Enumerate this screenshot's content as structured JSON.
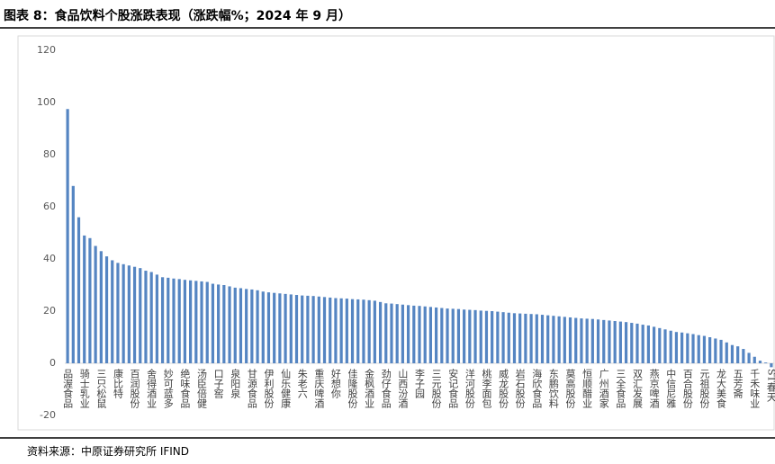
{
  "chart_data": {
    "type": "bar",
    "title": "图表 8：食品饮料个股涨跌表现（涨跌幅%；2024 年 9 月）",
    "source": "资料来源：中原证券研究所   IFIND",
    "categories": [
      "品渥食品",
      null,
      null,
      "骑士乳业",
      null,
      null,
      "三只松鼠",
      null,
      null,
      "康比特",
      null,
      null,
      "百润股份",
      null,
      null,
      "舍得酒业",
      null,
      null,
      "妙可蓝多",
      null,
      null,
      "绝味食品",
      null,
      null,
      "汤臣倍健",
      null,
      null,
      "口子窖",
      null,
      null,
      "泉阳泉",
      null,
      null,
      "甘源食品",
      null,
      null,
      "伊利股份",
      null,
      null,
      "仙乐健康",
      null,
      null,
      "朱老六",
      null,
      null,
      "重庆啤酒",
      null,
      null,
      "好想你",
      null,
      null,
      "佳隆股份",
      null,
      null,
      "金枫酒业",
      null,
      null,
      "劲仔食品",
      null,
      null,
      "山西汾酒",
      null,
      null,
      "李子园",
      null,
      null,
      "三元股份",
      null,
      null,
      "安记食品",
      null,
      null,
      "洋河股份",
      null,
      null,
      "桃李面包",
      null,
      null,
      "威龙股份",
      null,
      null,
      "岩石股份",
      null,
      null,
      "海欣食品",
      null,
      null,
      "东鹏饮料",
      null,
      null,
      "莫高股份",
      null,
      null,
      "恒顺醋业",
      null,
      null,
      "广州酒家",
      null,
      null,
      "三全食品",
      null,
      null,
      "双汇发展",
      null,
      null,
      "燕京啤酒",
      null,
      null,
      "中信尼雅",
      null,
      null,
      "百合股份",
      null,
      null,
      "元祖股份",
      null,
      null,
      "龙大美食",
      null,
      null,
      "五芳斋",
      null,
      null,
      "千禾味业",
      null,
      null,
      "ST春天"
    ],
    "values": [
      97.5,
      68,
      56,
      49,
      48,
      45,
      43,
      41,
      39.5,
      38.5,
      38,
      37.5,
      37,
      36.5,
      35.5,
      35,
      34,
      33,
      32.8,
      32.5,
      32.3,
      32,
      31.8,
      31.6,
      31.4,
      31.2,
      30.5,
      30.2,
      30,
      29.5,
      29,
      28.8,
      28.5,
      28.3,
      28,
      27.5,
      27.2,
      27,
      26.8,
      26.6,
      26.4,
      26.2,
      26,
      25.9,
      25.8,
      25.6,
      25.4,
      25.2,
      25,
      24.9,
      24.8,
      24.6,
      24.5,
      24.4,
      24.2,
      24,
      23.5,
      23,
      22.9,
      22.7,
      22.5,
      22.3,
      22.1,
      22,
      21.8,
      21.6,
      21.4,
      21.2,
      21,
      20.9,
      20.8,
      20.6,
      20.5,
      20.4,
      20.2,
      20.1,
      20,
      19.8,
      19.6,
      19.4,
      19.2,
      19.1,
      19,
      18.9,
      18.8,
      18.6,
      18.4,
      18.2,
      18,
      17.8,
      17.6,
      17.4,
      17.2,
      17.1,
      17,
      16.8,
      16.6,
      16.4,
      16.2,
      16,
      15.8,
      15.5,
      15.2,
      14.8,
      14.5,
      14,
      13.5,
      13,
      12.5,
      12,
      11.8,
      11.5,
      11.2,
      10.8,
      10.5,
      10,
      9.5,
      9,
      8,
      7,
      6.5,
      5.5,
      4,
      2.5,
      1,
      0.3,
      -1.5
    ],
    "color": "#5585c2",
    "ylim": [
      -20,
      120
    ],
    "yticks": [
      -20,
      0,
      20,
      40,
      60,
      80,
      100,
      120
    ],
    "grid": false
  }
}
